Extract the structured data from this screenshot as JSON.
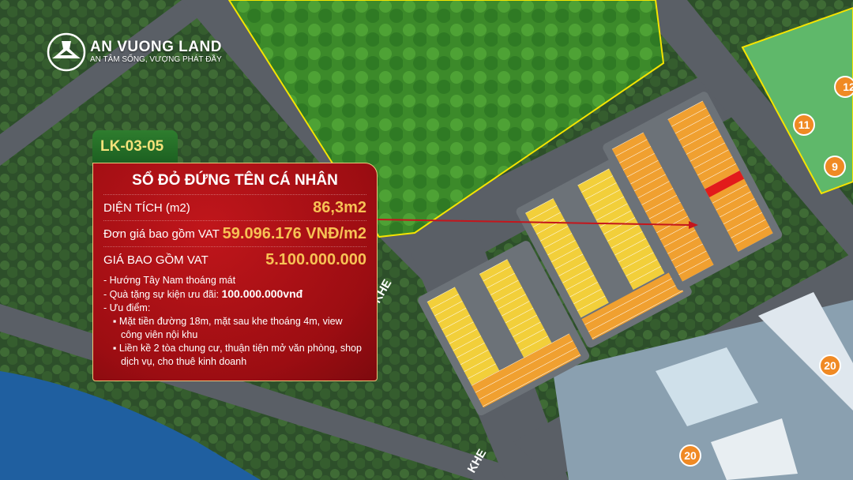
{
  "brand": {
    "name": "AN VUONG LAND",
    "slogan": "AN TÂM SỐNG, VƯỢNG PHÁT ĐẦY"
  },
  "listing": {
    "code": "LK-03-05",
    "title": "SỔ ĐỎ ĐỨNG TÊN CÁ NHÂN",
    "area_label": "DIỆN TÍCH (m2)",
    "area_value": "86,3m2",
    "unit_price_label": "Đơn giá bao gồm VAT",
    "unit_price_value": "59.096.176 VNĐ/m2",
    "total_label": "GIÁ BAO GỒM VAT",
    "total_value": "5.100.000.000",
    "notes": [
      "- Hướng Tây Nam thoáng mát",
      "- Quà tặng sự kiện ưu đãi: ",
      "- Ưu điểm:"
    ],
    "gift_value": "100.000.000vnđ",
    "advantages": [
      "▪ Mặt tiền đường 18m, mặt sau khe thoáng 4m, view công viên nội khu",
      "▪ Liền kề 2 tòa chung cư, thuận tiện mở văn phòng, shop dịch vụ, cho thuê kinh doanh"
    ]
  },
  "map": {
    "road_labels": [
      "KHE",
      "KHE"
    ],
    "markers": [
      "12",
      "11",
      "9",
      "20",
      "20"
    ],
    "colors": {
      "lot_orange": "#f0a030",
      "lot_yellow": "#f2cf3a",
      "highlight": "#e21b1b",
      "arrow": "#c4161c",
      "boundary": "#f5e400"
    }
  }
}
